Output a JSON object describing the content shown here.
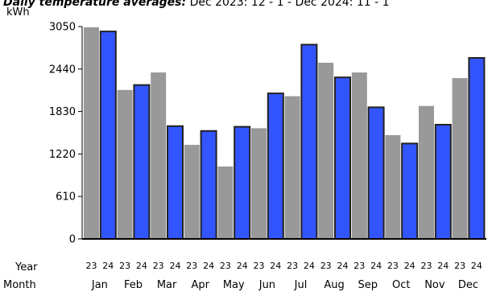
{
  "header": {
    "title": "Daily temperature averages:",
    "range": "Dec 2023: 12 - 1 - Dec 2024: 11 - 1"
  },
  "chart_data": {
    "type": "bar",
    "unit_label": "kWh",
    "ylim": [
      0,
      3050
    ],
    "yticks": [
      0,
      610,
      1220,
      1830,
      2440,
      3050
    ],
    "categories": [
      "Jan",
      "Feb",
      "Mar",
      "Apr",
      "May",
      "Jun",
      "Jul",
      "Aug",
      "Sep",
      "Oct",
      "Nov",
      "Dec"
    ],
    "row_labels": {
      "year": "Year",
      "month": "Month"
    },
    "series": [
      {
        "name": "23",
        "color": "#999999",
        "values": [
          3040,
          2140,
          2390,
          1350,
          1040,
          1590,
          2050,
          2530,
          2390,
          1490,
          1910,
          2310
        ]
      },
      {
        "name": "24",
        "color": "#3355ff",
        "values": [
          2980,
          2210,
          1620,
          1550,
          1610,
          2090,
          2790,
          2320,
          1890,
          1370,
          1640,
          2600
        ]
      }
    ],
    "grid": false,
    "legend": "none"
  }
}
